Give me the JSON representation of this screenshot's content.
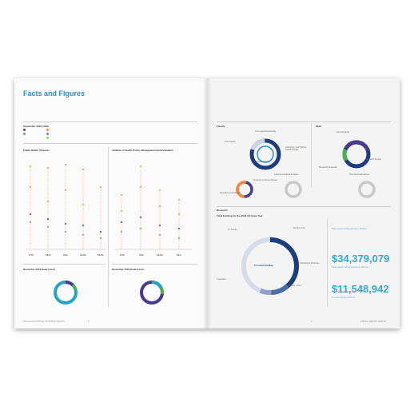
{
  "page_title": "Facts and Figures",
  "left": {
    "sep_header": "September 2018 | Male",
    "left_chart_title": "Public Health Sciences",
    "right_chart_title": "Institute of Health Policy, Management and Evaluation",
    "group_labels_a": [
      "PhD",
      "MPH",
      "MSc",
      "MHSc",
      "MHSt"
    ],
    "group_labels_b": [
      "PhD",
      "MSc",
      "MHSc",
      "MHI"
    ],
    "headcount_a_title": "November 2018 Head Count",
    "headcount_b_title": "November 2018 Head Count",
    "footer": "DALLA LANA SCHOOL OF PUBLIC HEALTH",
    "page_number": "8"
  },
  "right": {
    "faculty_title": "Faculty",
    "staff_title": "Staff",
    "faculty_labels": [
      "Core appointed faculty",
      "Core faculty",
      "Status-only",
      "University- and Partner-based Faculty",
      "Tenured or Tenure Stream",
      "Research or Professor",
      "Clinical & Retired & Status"
    ],
    "staff_labels": [
      "Administrative",
      "Research Associate",
      "Research (Grant)",
      "Post-Doctoral Fellows"
    ],
    "research_title": "Research",
    "funding_title": "Total Funding for the 2018-19 Grant Year",
    "funding_labels": [
      "Tri-council",
      "Not-for-profit",
      "Institutional initiatives",
      "Government, other",
      "Corporate",
      "Federal & Provincial"
    ],
    "funding_center": "Tri-council funding",
    "big_number_1": "$34,379,079",
    "big_caption_1": "Total research funding awarded in 2018-19",
    "big_number_2": "$11,548,942",
    "big_caption_2": "Tri-council funding 2018-19",
    "footer": "ANNUAL REPORT 2018-19",
    "page_number": "9"
  },
  "colors": {
    "accent": "#2a8fbf",
    "navy": "#1c3d7a",
    "purple": "#4b3a8c",
    "green": "#4caf50",
    "orange": "#f08a3c",
    "teal": "#26a4c4",
    "grey": "#c9c9c9"
  }
}
